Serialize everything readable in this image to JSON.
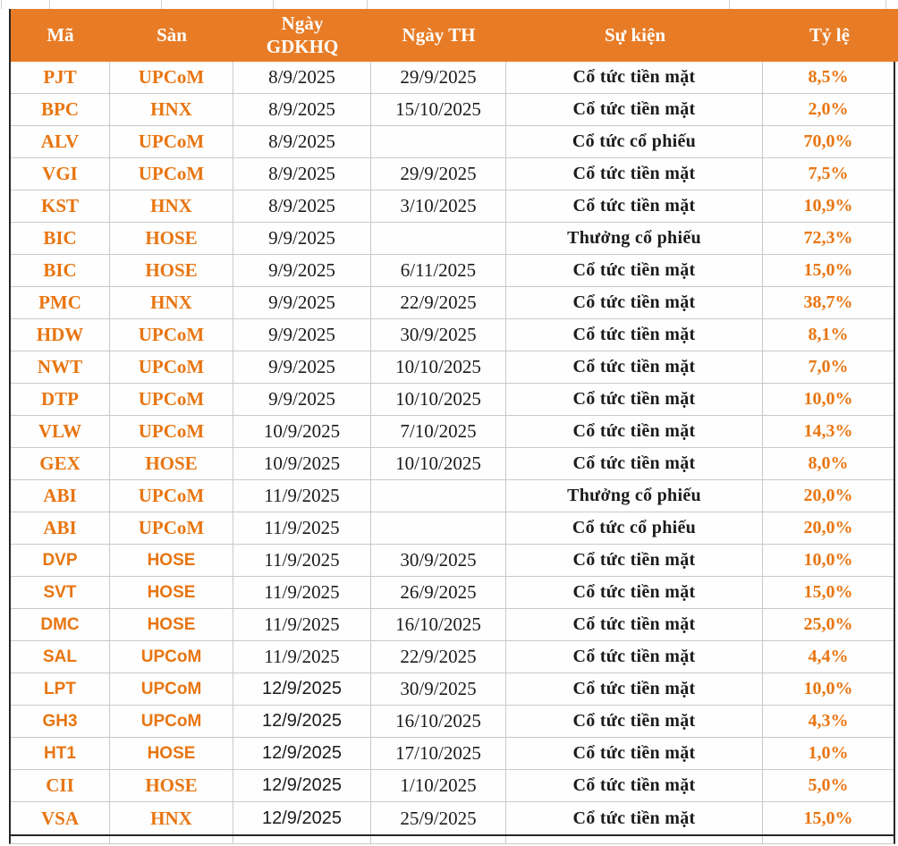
{
  "chart_data": {
    "type": "table",
    "columns": [
      "Mã",
      "Sàn",
      "Ngày GDKHQ",
      "Ngày TH",
      "Sự kiện",
      "Tỷ lệ"
    ],
    "rows": [
      [
        "PJT",
        "UPCoM",
        "8/9/2025",
        "29/9/2025",
        "Cổ tức tiền mặt",
        "8,5%"
      ],
      [
        "BPC",
        "HNX",
        "8/9/2025",
        "15/10/2025",
        "Cổ tức tiền mặt",
        "2,0%"
      ],
      [
        "ALV",
        "UPCoM",
        "8/9/2025",
        "",
        "Cổ tức cổ phiếu",
        "70,0%"
      ],
      [
        "VGI",
        "UPCoM",
        "8/9/2025",
        "29/9/2025",
        "Cổ tức tiền mặt",
        "7,5%"
      ],
      [
        "KST",
        "HNX",
        "8/9/2025",
        "3/10/2025",
        "Cổ tức tiền mặt",
        "10,9%"
      ],
      [
        "BIC",
        "HOSE",
        "9/9/2025",
        "",
        "Thưởng cổ phiếu",
        "72,3%"
      ],
      [
        "BIC",
        "HOSE",
        "9/9/2025",
        "6/11/2025",
        "Cổ tức tiền mặt",
        "15,0%"
      ],
      [
        "PMC",
        "HNX",
        "9/9/2025",
        "22/9/2025",
        "Cổ tức tiền mặt",
        "38,7%"
      ],
      [
        "HDW",
        "UPCoM",
        "9/9/2025",
        "30/9/2025",
        "Cổ tức tiền mặt",
        "8,1%"
      ],
      [
        "NWT",
        "UPCoM",
        "9/9/2025",
        "10/10/2025",
        "Cổ tức tiền mặt",
        "7,0%"
      ],
      [
        "DTP",
        "UPCoM",
        "9/9/2025",
        "10/10/2025",
        "Cổ tức tiền mặt",
        "10,0%"
      ],
      [
        "VLW",
        "UPCoM",
        "10/9/2025",
        "7/10/2025",
        "Cổ tức tiền mặt",
        "14,3%"
      ],
      [
        "GEX",
        "HOSE",
        "10/9/2025",
        "10/10/2025",
        "Cổ tức tiền mặt",
        "8,0%"
      ],
      [
        "ABI",
        "UPCoM",
        "11/9/2025",
        "",
        "Thưởng cổ phiếu",
        "20,0%"
      ],
      [
        "ABI",
        "UPCoM",
        "11/9/2025",
        "",
        "Cổ tức cổ phiếu",
        "20,0%"
      ],
      [
        "DVP",
        "HOSE",
        "11/9/2025",
        "30/9/2025",
        "Cổ tức tiền mặt",
        "10,0%"
      ],
      [
        "SVT",
        "HOSE",
        "11/9/2025",
        "26/9/2025",
        "Cổ tức tiền mặt",
        "15,0%"
      ],
      [
        "DMC",
        "HOSE",
        "11/9/2025",
        "16/10/2025",
        "Cổ tức tiền mặt",
        "25,0%"
      ],
      [
        "SAL",
        "UPCoM",
        "11/9/2025",
        "22/9/2025",
        "Cổ tức tiền mặt",
        "4,4%"
      ],
      [
        "LPT",
        "UPCoM",
        "12/9/2025",
        "30/9/2025",
        "Cổ tức tiền mặt",
        "10,0%"
      ],
      [
        "GH3",
        "UPCoM",
        "12/9/2025",
        "16/10/2025",
        "Cổ tức tiền mặt",
        "4,3%"
      ],
      [
        "HT1",
        "HOSE",
        "12/9/2025",
        "17/10/2025",
        "Cổ tức tiền mặt",
        "1,0%"
      ],
      [
        "CII",
        "HOSE",
        "12/9/2025",
        "1/10/2025",
        "Cổ tức tiền mặt",
        "5,0%"
      ],
      [
        "VSA",
        "HNX",
        "12/9/2025",
        "25/9/2025",
        "Cổ tức tiền mặt",
        "15,0%"
      ]
    ],
    "layout_hints": {
      "grid": true,
      "header_fill": "orange",
      "accent_columns": [
        "Mã",
        "Sàn",
        "Tỷ lệ"
      ]
    }
  },
  "presentation": {
    "column_keys": [
      "code",
      "exchange",
      "ex-date",
      "execution-date",
      "event",
      "ratio"
    ],
    "column_classes": [
      "c-code",
      "c-exch",
      "c-date",
      "c-date",
      "c-event",
      "c-ratio"
    ],
    "sans_code_rows": [
      15,
      16,
      17,
      18,
      19,
      20,
      21
    ],
    "sans_gdkhq_rows": [
      19,
      20,
      21,
      22,
      23
    ],
    "top_strip_ticks": [
      1,
      55,
      180,
      305,
      410,
      815,
      990
    ],
    "colors": {
      "header_bg": "#E87C26",
      "header_text": "#FFFFFF",
      "accent": "#E87511",
      "ink": "#1B1B1B",
      "grid": "#C9C9C9",
      "dark": "#262626"
    }
  }
}
